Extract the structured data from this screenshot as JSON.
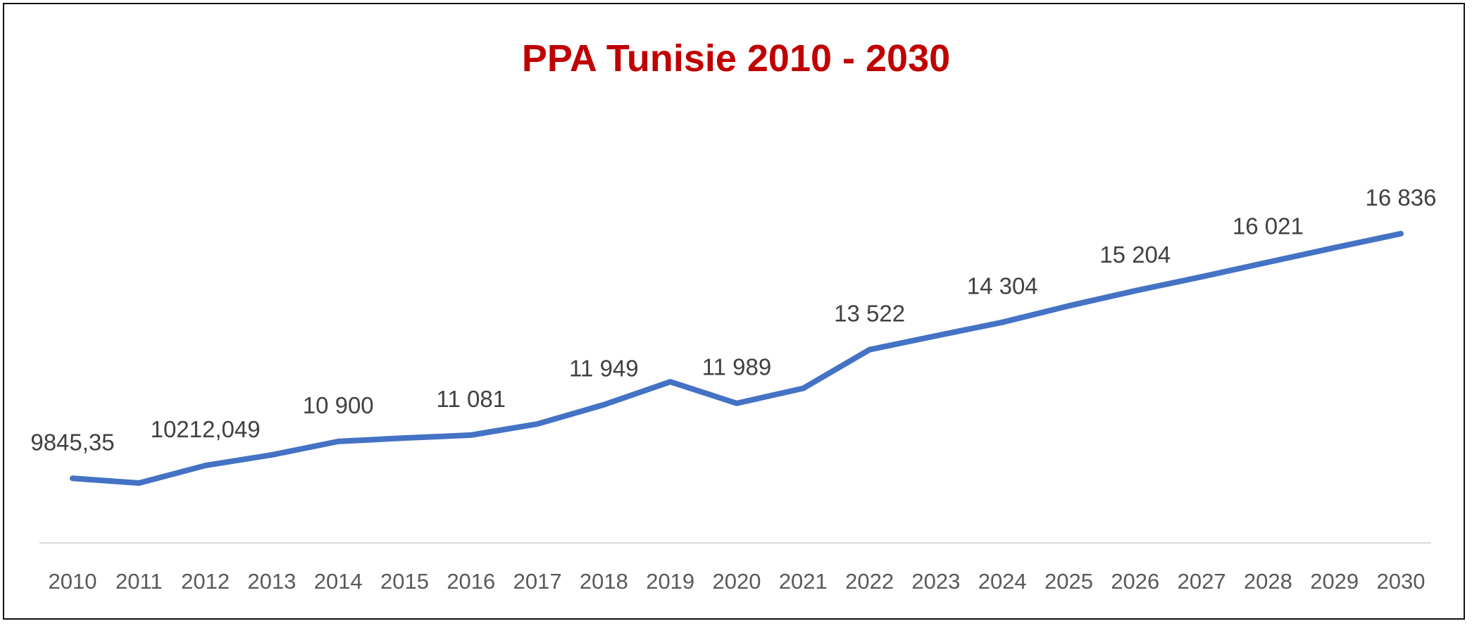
{
  "chart_data": {
    "type": "line",
    "title": "PPA Tunisie 2010 - 2030",
    "xlabel": "",
    "ylabel": "",
    "ylim": [
      8000,
      18000
    ],
    "grid": false,
    "line_color": "#4472C4",
    "title_color": "#C00000",
    "categories": [
      "2010",
      "2011",
      "2012",
      "2013",
      "2014",
      "2015",
      "2016",
      "2017",
      "2018",
      "2019",
      "2020",
      "2021",
      "2022",
      "2023",
      "2024",
      "2025",
      "2026",
      "2027",
      "2028",
      "2029",
      "2030"
    ],
    "series": [
      {
        "values": [
          9845.35,
          9711,
          10212.049,
          10515,
          10900,
          10997,
          11081,
          11399,
          11949,
          12604,
          11989,
          12416,
          13522,
          13917,
          14304,
          14774,
          15204,
          15605,
          16021,
          16435,
          16836
        ],
        "data_labels": [
          "9845,35",
          "",
          "10212,049",
          "",
          "10 900",
          "",
          "11 081",
          "",
          "11 949",
          "",
          "11 989",
          "",
          "13 522",
          "",
          "14 304",
          "",
          "15 204",
          "",
          "16 021",
          "",
          "16 836"
        ]
      }
    ]
  }
}
